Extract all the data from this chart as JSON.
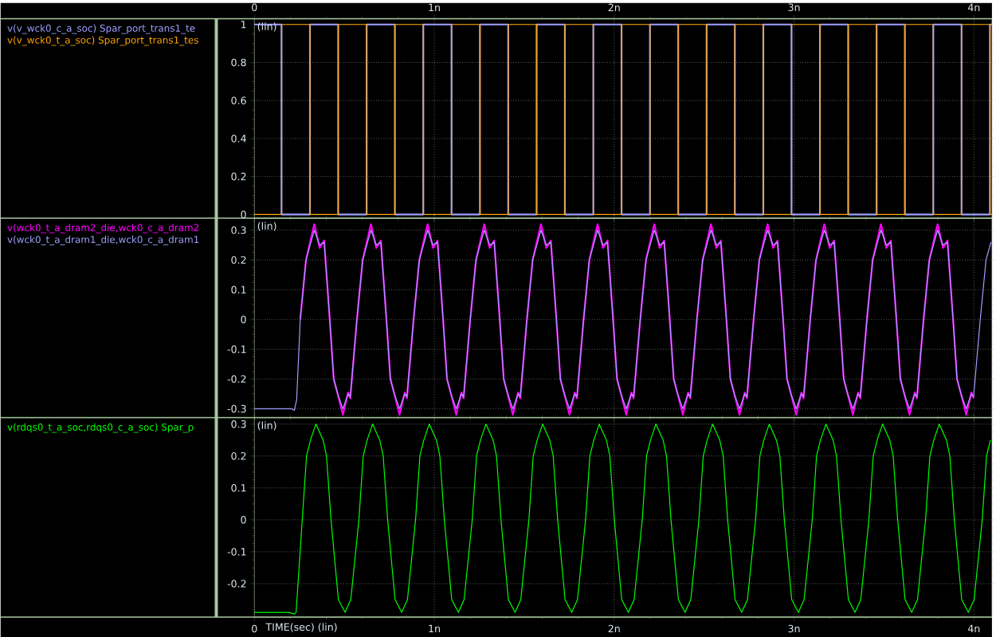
{
  "chart_data": [
    {
      "type": "step",
      "xlim": [
        0,
        4.1
      ],
      "xticks": [
        0,
        {
          "value": 1,
          "label": "1n"
        },
        {
          "value": 2,
          "label": "2n"
        },
        {
          "value": 3,
          "label": "3n"
        },
        {
          "value": 4,
          "label": "4n"
        }
      ],
      "ylim": [
        -0.02,
        1.03
      ],
      "yticks": [
        0,
        0.2,
        0.4,
        0.6,
        0.8,
        1
      ],
      "grid": true,
      "legend": "left",
      "annotations": [
        "(lin)"
      ],
      "x": [
        0,
        0.151,
        0.309,
        0.466,
        0.624,
        0.781,
        0.939,
        1.096,
        1.254,
        1.411,
        1.569,
        1.726,
        1.884,
        2.041,
        2.199,
        2.356,
        2.514,
        2.671,
        2.829,
        2.986,
        3.144,
        3.301,
        3.459,
        3.616,
        3.774,
        3.931,
        4.089,
        4.1
      ],
      "series": [
        {
          "name": "v(v_wck0_c_a_soc) Spar_port_trans1_te",
          "color": "#9f9fff",
          "values": [
            1,
            0,
            1,
            0,
            1,
            0,
            1,
            0,
            1,
            0,
            1,
            0,
            1,
            0,
            1,
            0,
            1,
            0,
            1,
            0,
            1,
            0,
            1,
            0,
            1,
            0,
            1,
            1
          ]
        },
        {
          "name": "v(v_wck0_t_a_soc) Spar_port_trans1_tes",
          "color": "#ffa500",
          "values": [
            0,
            1,
            0,
            1,
            0,
            1,
            0,
            1,
            0,
            1,
            0,
            1,
            0,
            1,
            0,
            1,
            0,
            1,
            0,
            1,
            0,
            1,
            0,
            1,
            0,
            1,
            0,
            0
          ]
        }
      ]
    },
    {
      "type": "line",
      "xlim": [
        0,
        4.1
      ],
      "xticks": [
        {
          "value": 0,
          "label": null
        },
        {
          "value": 1,
          "label": null
        },
        {
          "value": 2,
          "label": null
        },
        {
          "value": 3,
          "label": null
        },
        {
          "value": 4,
          "label": null
        }
      ],
      "ylim": [
        -0.33,
        0.34
      ],
      "yticks": [
        -0.3,
        -0.2,
        -0.1,
        0,
        0.1,
        0.2,
        0.3
      ],
      "grid": true,
      "legend": "left",
      "tick_labels": "y",
      "annotations": [
        "(lin)"
      ],
      "x": [
        0,
        0.207,
        0.222,
        0.235,
        0.255,
        0.287,
        0.333,
        0.363,
        0.388,
        0.419,
        0.441,
        0.463,
        0.492,
        0.521,
        0.533,
        0.57,
        0.602,
        0.648,
        0.678,
        0.703,
        0.734,
        0.756,
        0.778,
        0.807,
        0.836,
        0.848,
        0.885,
        0.917,
        0.963,
        0.993,
        1.018,
        1.049,
        1.071,
        1.093,
        1.122,
        1.151,
        1.163,
        1.2,
        1.232,
        1.278,
        1.308,
        1.333,
        1.364,
        1.386,
        1.408,
        1.437,
        1.466,
        1.478,
        1.515,
        1.547,
        1.593,
        1.623,
        1.648,
        1.679,
        1.701,
        1.723,
        1.752,
        1.781,
        1.793,
        1.83,
        1.862,
        1.908,
        1.938,
        1.963,
        1.994,
        2.016,
        2.038,
        2.067,
        2.096,
        2.108,
        2.145,
        2.177,
        2.223,
        2.253,
        2.278,
        2.309,
        2.331,
        2.353,
        2.382,
        2.411,
        2.423,
        2.46,
        2.492,
        2.538,
        2.568,
        2.593,
        2.624,
        2.646,
        2.668,
        2.697,
        2.726,
        2.738,
        2.775,
        2.807,
        2.853,
        2.883,
        2.908,
        2.939,
        2.961,
        2.983,
        3.012,
        3.041,
        3.053,
        3.09,
        3.122,
        3.168,
        3.198,
        3.223,
        3.254,
        3.276,
        3.298,
        3.327,
        3.356,
        3.368,
        3.405,
        3.437,
        3.483,
        3.513,
        3.538,
        3.569,
        3.591,
        3.613,
        3.642,
        3.671,
        3.683,
        3.72,
        3.752,
        3.798,
        3.828,
        3.853,
        3.884,
        3.906,
        3.928,
        3.957,
        3.986,
        3.998,
        4.035,
        4.067,
        4.095
      ],
      "series": [
        {
          "name": "v(wck0_t_a_dram2_die,wck0_c_a_dram2",
          "color": "#ff00ff",
          "values": [
            null,
            null,
            null,
            null,
            0,
            0.2,
            0.32,
            0.24,
            0.265,
            0,
            -0.2,
            -0.25,
            -0.32,
            -0.245,
            -0.265,
            0,
            0.2,
            0.32,
            0.24,
            0.265,
            0,
            -0.2,
            -0.25,
            -0.32,
            -0.245,
            -0.265,
            0,
            0.2,
            0.32,
            0.24,
            0.265,
            0,
            -0.2,
            -0.25,
            -0.32,
            -0.245,
            -0.265,
            0,
            0.2,
            0.32,
            0.24,
            0.265,
            0,
            -0.2,
            -0.25,
            -0.32,
            -0.245,
            -0.265,
            0,
            0.2,
            0.32,
            0.24,
            0.265,
            0,
            -0.2,
            -0.25,
            -0.32,
            -0.245,
            -0.265,
            0,
            0.2,
            0.32,
            0.24,
            0.265,
            0,
            -0.2,
            -0.25,
            -0.32,
            -0.245,
            -0.265,
            0,
            0.2,
            0.32,
            0.24,
            0.265,
            0,
            -0.2,
            -0.25,
            -0.32,
            -0.245,
            -0.265,
            0,
            0.2,
            0.32,
            0.24,
            0.265,
            0,
            -0.2,
            -0.25,
            -0.32,
            -0.245,
            -0.265,
            0,
            0.2,
            0.32,
            0.24,
            0.265,
            0,
            -0.2,
            -0.25,
            -0.32,
            -0.245,
            -0.265,
            0,
            0.2,
            0.32,
            0.24,
            0.265,
            0,
            -0.2,
            -0.25,
            -0.32,
            -0.245,
            -0.265,
            0,
            0.2,
            0.32,
            0.24,
            0.265,
            0,
            -0.2,
            -0.25,
            -0.32,
            -0.245,
            -0.265,
            0,
            0.2,
            0.32,
            0.24,
            0.265,
            0,
            -0.2,
            -0.25,
            -0.32,
            -0.245,
            -0.265,
            null,
            null,
            null
          ]
        },
        {
          "name": "v(wck0_t_a_dram1_die,wck0_c_a_dram1",
          "color": "#9f9fff",
          "values": [
            -0.3,
            -0.3,
            -0.305,
            -0.27,
            0,
            0.2,
            0.3,
            0.25,
            0.26,
            0,
            -0.2,
            -0.25,
            -0.3,
            -0.25,
            -0.26,
            0,
            0.2,
            0.3,
            0.25,
            0.26,
            0,
            -0.2,
            -0.25,
            -0.3,
            -0.25,
            -0.26,
            0,
            0.2,
            0.3,
            0.25,
            0.26,
            0,
            -0.2,
            -0.25,
            -0.3,
            -0.25,
            -0.26,
            0,
            0.2,
            0.3,
            0.25,
            0.26,
            0,
            -0.2,
            -0.25,
            -0.3,
            -0.25,
            -0.26,
            0,
            0.2,
            0.3,
            0.25,
            0.26,
            0,
            -0.2,
            -0.25,
            -0.3,
            -0.25,
            -0.26,
            0,
            0.2,
            0.3,
            0.25,
            0.26,
            0,
            -0.2,
            -0.25,
            -0.3,
            -0.25,
            -0.26,
            0,
            0.2,
            0.3,
            0.25,
            0.26,
            0,
            -0.2,
            -0.25,
            -0.3,
            -0.25,
            -0.26,
            0,
            0.2,
            0.3,
            0.25,
            0.26,
            0,
            -0.2,
            -0.25,
            -0.3,
            -0.25,
            -0.26,
            0,
            0.2,
            0.3,
            0.25,
            0.26,
            0,
            -0.2,
            -0.25,
            -0.3,
            -0.25,
            -0.26,
            0,
            0.2,
            0.3,
            0.25,
            0.26,
            0,
            -0.2,
            -0.25,
            -0.3,
            -0.25,
            -0.26,
            0,
            0.2,
            0.3,
            0.25,
            0.26,
            0,
            -0.2,
            -0.25,
            -0.3,
            -0.25,
            -0.26,
            0,
            0.2,
            0.3,
            0.25,
            0.26,
            0,
            -0.2,
            -0.25,
            -0.3,
            -0.25,
            -0.26,
            0,
            0.2,
            0.26
          ]
        }
      ]
    },
    {
      "type": "line",
      "xlim": [
        0,
        4.1
      ],
      "xticks": [
        0,
        {
          "value": 1,
          "label": "1n"
        },
        {
          "value": 2,
          "label": "2n"
        },
        {
          "value": 3,
          "label": "3n"
        },
        {
          "value": 4,
          "label": "4n"
        }
      ],
      "ylim": [
        -0.305,
        0.32
      ],
      "yticks": [
        -0.2,
        -0.1,
        0,
        0.1,
        0.2,
        0.3
      ],
      "grid": true,
      "legend": "left",
      "xlabel": "TIME(sec) (lin)",
      "annotations": [
        "(lin)"
      ],
      "x": [
        0,
        0.191,
        0.222,
        0.232,
        0.266,
        0.29,
        0.312,
        0.342,
        0.382,
        0.401,
        0.426,
        0.467,
        0.504,
        0.536,
        0.581,
        0.605,
        0.627,
        0.657,
        0.697,
        0.716,
        0.741,
        0.782,
        0.819,
        0.851,
        0.896,
        0.92,
        0.942,
        0.972,
        1.012,
        1.031,
        1.056,
        1.097,
        1.134,
        1.166,
        1.211,
        1.235,
        1.257,
        1.287,
        1.327,
        1.346,
        1.371,
        1.412,
        1.449,
        1.481,
        1.526,
        1.55,
        1.572,
        1.602,
        1.642,
        1.661,
        1.686,
        1.727,
        1.764,
        1.796,
        1.841,
        1.865,
        1.887,
        1.917,
        1.957,
        1.976,
        2.001,
        2.042,
        2.079,
        2.111,
        2.156,
        2.18,
        2.202,
        2.232,
        2.272,
        2.291,
        2.316,
        2.357,
        2.394,
        2.426,
        2.471,
        2.495,
        2.517,
        2.547,
        2.587,
        2.606,
        2.631,
        2.672,
        2.709,
        2.741,
        2.786,
        2.81,
        2.832,
        2.862,
        2.902,
        2.921,
        2.946,
        2.987,
        3.024,
        3.056,
        3.101,
        3.125,
        3.147,
        3.177,
        3.217,
        3.236,
        3.261,
        3.302,
        3.339,
        3.371,
        3.416,
        3.44,
        3.462,
        3.492,
        3.532,
        3.551,
        3.576,
        3.617,
        3.654,
        3.686,
        3.731,
        3.755,
        3.777,
        3.807,
        3.847,
        3.866,
        3.891,
        3.932,
        3.969,
        4.001,
        4.046,
        4.07,
        4.092
      ],
      "series": [
        {
          "name": "v(rdqs0_t_a_soc,rdqs0_c_a_soc) Spar_p",
          "color": "#00ff00",
          "values": [
            -0.29,
            -0.29,
            -0.295,
            -0.29,
            0,
            0.2,
            0.25,
            0.3,
            0.25,
            0.2,
            0,
            -0.25,
            -0.29,
            -0.25,
            0,
            0.2,
            0.25,
            0.3,
            0.25,
            0.2,
            0,
            -0.25,
            -0.29,
            -0.25,
            0,
            0.2,
            0.25,
            0.3,
            0.25,
            0.2,
            0,
            -0.25,
            -0.29,
            -0.25,
            0,
            0.2,
            0.25,
            0.3,
            0.25,
            0.2,
            0,
            -0.25,
            -0.29,
            -0.25,
            0,
            0.2,
            0.25,
            0.3,
            0.25,
            0.2,
            0,
            -0.25,
            -0.29,
            -0.25,
            0,
            0.2,
            0.25,
            0.3,
            0.25,
            0.2,
            0,
            -0.25,
            -0.29,
            -0.25,
            0,
            0.2,
            0.25,
            0.3,
            0.25,
            0.2,
            0,
            -0.25,
            -0.29,
            -0.25,
            0,
            0.2,
            0.25,
            0.3,
            0.25,
            0.2,
            0,
            -0.25,
            -0.29,
            -0.25,
            0,
            0.2,
            0.25,
            0.3,
            0.25,
            0.2,
            0,
            -0.25,
            -0.29,
            -0.25,
            0,
            0.2,
            0.25,
            0.3,
            0.25,
            0.2,
            0,
            -0.25,
            -0.29,
            -0.25,
            0,
            0.2,
            0.25,
            0.3,
            0.25,
            0.2,
            0,
            -0.25,
            -0.29,
            -0.25,
            0,
            0.2,
            0.25,
            0.3,
            0.25,
            0.2,
            0,
            -0.25,
            -0.29,
            -0.25,
            0,
            0.2,
            0.25
          ]
        }
      ]
    }
  ]
}
